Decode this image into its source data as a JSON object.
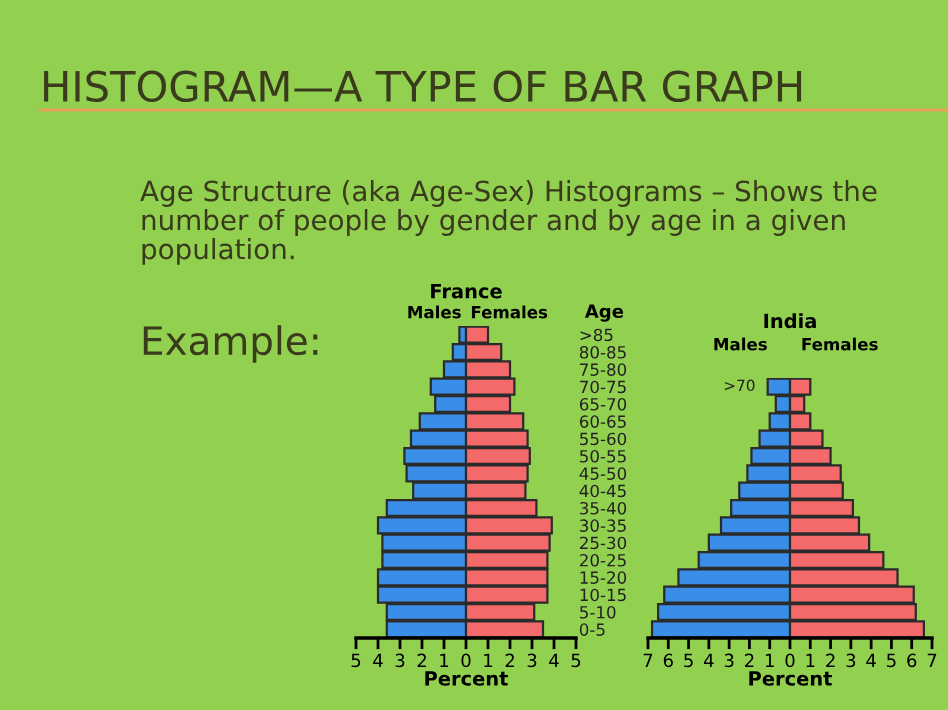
{
  "chart_data": [
    {
      "type": "bar",
      "orientation": "horizontal",
      "stacked": true,
      "title": "France",
      "ylabel": "Age",
      "xlabel": "Percent",
      "annotations": [
        "HISTOGRAM—A TYPE OF BAR GRAPH",
        "Age Structure (aka Age-Sex) Histograms – Shows the number of people by gender and by age in a given population.",
        "Example:"
      ],
      "categories": [
        ">85",
        "80-85",
        "75-80",
        "70-75",
        "65-70",
        "60-65",
        "55-60",
        "50-55",
        "45-50",
        "40-45",
        "35-40",
        "30-35",
        "25-30",
        "20-25",
        "15-20",
        "10-15",
        "5-10",
        "0-5"
      ],
      "series": [
        {
          "name": "Males",
          "color": "#3b8ee8",
          "values": [
            -0.3,
            -0.6,
            -1.0,
            -1.6,
            -1.4,
            -2.1,
            -2.5,
            -2.8,
            -2.7,
            -2.4,
            -3.6,
            -4.0,
            -3.8,
            -3.8,
            -4.0,
            -4.0,
            -3.6,
            -3.6
          ]
        },
        {
          "name": "Females",
          "color": "#f46a6a",
          "values": [
            1.0,
            1.6,
            2.0,
            2.2,
            2.0,
            2.6,
            2.8,
            2.9,
            2.8,
            2.7,
            3.2,
            3.9,
            3.8,
            3.7,
            3.7,
            3.7,
            3.1,
            3.5
          ]
        }
      ],
      "xlim": [
        -5,
        5
      ],
      "xticks": [
        {
          "value": -5,
          "label": "5"
        },
        {
          "value": -4,
          "label": "4"
        },
        {
          "value": -3,
          "label": "3"
        },
        {
          "value": -2,
          "label": "2"
        },
        {
          "value": -1,
          "label": "1"
        },
        0,
        1,
        2,
        3,
        4,
        5
      ],
      "legend": false,
      "grid": false
    },
    {
      "type": "bar",
      "orientation": "horizontal",
      "stacked": true,
      "title": "India",
      "xlabel": "Percent",
      "tick_labels": "x",
      "categories": [
        ">70",
        "65-70",
        "60-65",
        "55-60",
        "50-55",
        "45-50",
        "40-45",
        "35-40",
        "30-35",
        "25-30",
        "20-25",
        "15-20",
        "10-15",
        "5-10",
        "0-5"
      ],
      "series": [
        {
          "name": "Males",
          "color": "#3b8ee8",
          "values": [
            -1.1,
            -0.7,
            -1.0,
            -1.5,
            -1.9,
            -2.1,
            -2.5,
            -2.9,
            -3.4,
            -4.0,
            -4.5,
            -5.5,
            -6.2,
            -6.5,
            -6.8
          ]
        },
        {
          "name": "Females",
          "color": "#f46a6a",
          "values": [
            1.0,
            0.7,
            1.0,
            1.6,
            2.0,
            2.5,
            2.6,
            3.1,
            3.4,
            3.9,
            4.6,
            5.3,
            6.1,
            6.2,
            6.6
          ]
        }
      ],
      "xlim": [
        -7,
        7
      ],
      "xticks": [
        {
          "value": -7,
          "label": "7"
        },
        {
          "value": -6,
          "label": "6"
        },
        {
          "value": -5,
          "label": "5"
        },
        {
          "value": -4,
          "label": "4"
        },
        {
          "value": -3,
          "label": "3"
        },
        {
          "value": -2,
          "label": "2"
        },
        {
          "value": -1,
          "label": "1"
        },
        0,
        1,
        2,
        3,
        4,
        5,
        6,
        7
      ],
      "legend": false,
      "grid": false
    }
  ]
}
